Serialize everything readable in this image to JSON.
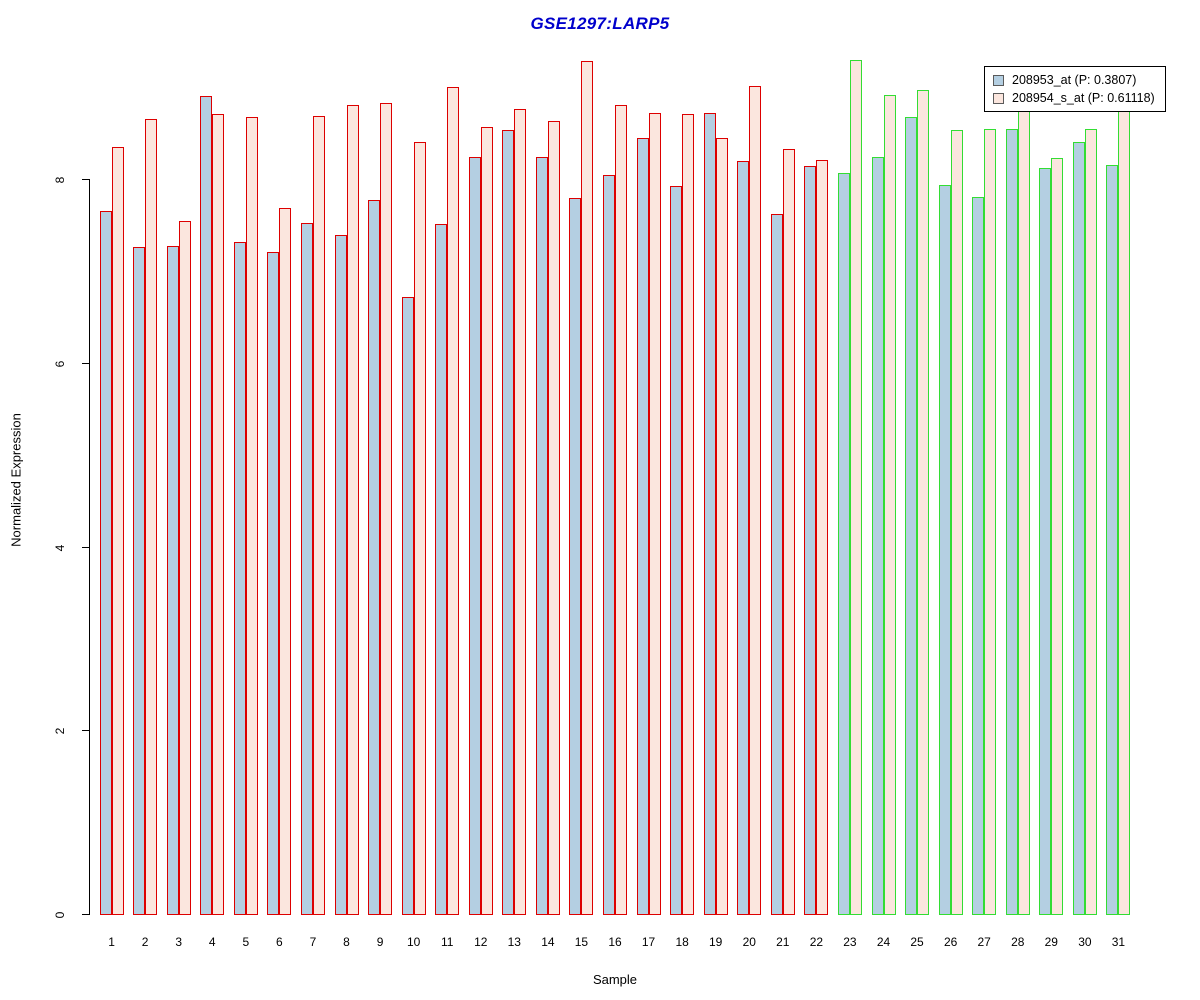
{
  "title": "GSE1297:LARP5",
  "title_color": "#0000cc",
  "axes": {
    "x_label": "Sample",
    "y_label": "Normalized Expression",
    "y_ticks": [
      0,
      2,
      4,
      6,
      8
    ]
  },
  "legend": {
    "items": [
      {
        "label": "208953_at (P: 0.3807)",
        "fill": "#b4cfe2"
      },
      {
        "label": "208954_s_at (P: 0.61118)",
        "fill": "#fbe6de"
      }
    ]
  },
  "styles": {
    "bar_fill_series1": "#b4cfe2",
    "bar_fill_series2": "#fbe6de",
    "border_color_group_red": "#dd0000",
    "border_color_group_green": "#33dd33",
    "red_border_last_sample": 22
  },
  "chart_data": {
    "type": "bar",
    "title": "GSE1297:LARP5",
    "xlabel": "Sample",
    "ylabel": "Normalized Expression",
    "ylim": [
      0,
      9.4
    ],
    "y_ticks": [
      0,
      2,
      4,
      6,
      8
    ],
    "grid": false,
    "legend_position": "top-right",
    "categories": [
      "1",
      "2",
      "3",
      "4",
      "5",
      "6",
      "7",
      "8",
      "9",
      "10",
      "11",
      "12",
      "13",
      "14",
      "15",
      "16",
      "17",
      "18",
      "19",
      "20",
      "21",
      "22",
      "23",
      "24",
      "25",
      "26",
      "27",
      "28",
      "29",
      "30",
      "31"
    ],
    "series": [
      {
        "name": "208953_at (P: 0.3807)",
        "values": [
          7.66,
          7.27,
          7.28,
          8.91,
          7.32,
          7.22,
          7.53,
          7.4,
          7.78,
          6.73,
          7.52,
          8.25,
          8.54,
          8.25,
          7.8,
          8.05,
          8.46,
          7.93,
          8.73,
          8.21,
          7.63,
          8.15,
          8.08,
          8.25,
          8.69,
          7.95,
          7.82,
          8.55,
          8.13,
          8.41,
          8.16
        ]
      },
      {
        "name": "208954_s_at (P: 0.61118)",
        "values": [
          8.36,
          8.66,
          7.55,
          8.72,
          8.69,
          7.7,
          8.7,
          8.82,
          8.84,
          8.41,
          9.01,
          8.58,
          8.77,
          8.64,
          9.3,
          8.82,
          8.73,
          8.72,
          8.46,
          9.02,
          8.34,
          8.22,
          9.31,
          8.92,
          8.98,
          8.54,
          8.55,
          8.9,
          8.24,
          8.55,
          8.9
        ]
      }
    ],
    "sample_group_borders": [
      {
        "samples": "1-22",
        "border_color": "#dd0000"
      },
      {
        "samples": "23-31",
        "border_color": "#33dd33"
      }
    ]
  }
}
